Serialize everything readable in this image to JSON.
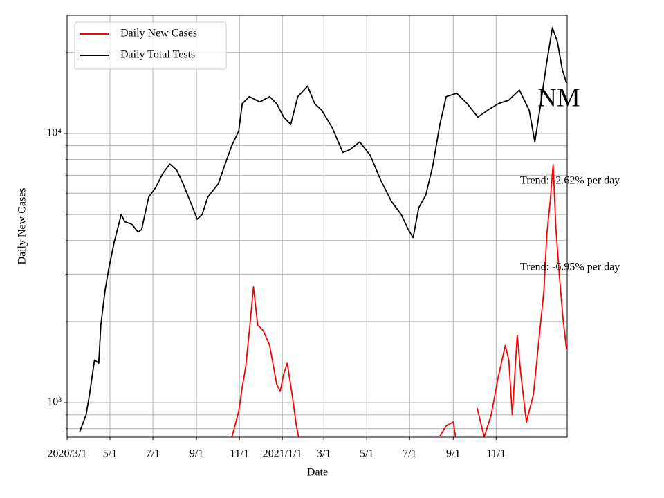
{
  "chart_data": {
    "type": "line",
    "title": "NM",
    "xlabel": "Date",
    "ylabel": "Daily New Cases",
    "log_y": true,
    "grid": true,
    "legend": "upper left",
    "annotations": [
      "Trend: -2.62% per day",
      "Trend: -6.95% per day"
    ],
    "xlim": [
      "2020-03-01",
      "2022-02-10"
    ],
    "xticks": [
      {
        "value": "2020-03-01",
        "label": "2020/3/1"
      },
      {
        "value": "2020-05-01",
        "label": "5/1"
      },
      {
        "value": "2020-07-01",
        "label": "7/1"
      },
      {
        "value": "2020-09-01",
        "label": "9/1"
      },
      {
        "value": "2020-11-01",
        "label": "11/1"
      },
      {
        "value": "2021-01-01",
        "label": "2021/1/1"
      },
      {
        "value": "2021-03-01",
        "label": "3/1"
      },
      {
        "value": "2021-05-01",
        "label": "5/1"
      },
      {
        "value": "2021-07-01",
        "label": "7/1"
      },
      {
        "value": "2021-09-01",
        "label": "9/1"
      },
      {
        "value": "2021-11-01",
        "label": "11/1"
      }
    ],
    "ylim": [
      744,
      27500
    ],
    "yticks": [
      {
        "value": 1000,
        "label": "10³"
      },
      {
        "value": 10000,
        "label": "10⁴"
      }
    ],
    "yminorticks": [
      800,
      900,
      2000,
      3000,
      4000,
      5000,
      6000,
      7000,
      8000,
      9000,
      20000
    ],
    "series": [
      {
        "name": "Daily New Cases",
        "color": "#ff0000",
        "x": [
          "2020-10-21",
          "2020-10-27",
          "2020-10-31",
          "2020-11-05",
          "2020-11-10",
          "2020-11-15",
          "2020-11-21",
          "2020-11-27",
          "2020-12-05",
          "2020-12-14",
          "2020-12-24",
          "2020-12-29",
          "2021-01-03",
          "2021-01-08",
          "2021-01-15",
          "2021-01-21",
          "2021-01-26",
          "2021-05-01",
          "2021-08-13",
          "2021-08-22",
          "2021-09-01",
          "2021-09-06",
          "2021-09-20",
          "2021-10-05",
          "2021-10-15",
          "2021-10-25",
          "2021-11-04",
          "2021-11-14",
          "2021-11-19",
          "2021-11-24",
          "2021-12-01",
          "2021-12-06",
          "2021-12-14",
          "2021-12-24",
          "2022-01-01",
          "2022-01-08",
          "2022-01-12",
          "2022-01-17",
          "2022-01-21",
          "2022-01-25",
          "2022-01-30",
          "2022-02-04",
          "2022-02-09"
        ],
        "values": [
          740,
          847,
          926,
          1140,
          1360,
          1830,
          2690,
          1940,
          1850,
          1630,
          1170,
          1100,
          1280,
          1400,
          1070,
          820,
          710,
          null,
          750,
          820,
          847,
          700,
          null,
          955,
          745,
          900,
          1245,
          1630,
          1440,
          900,
          1780,
          1280,
          847,
          1070,
          1730,
          2620,
          4190,
          5640,
          7660,
          4440,
          2940,
          2060,
          1580
        ]
      },
      {
        "name": "Daily Total Tests",
        "color": "#000000",
        "x": [
          "2020-03-19",
          "2020-03-28",
          "2020-04-02",
          "2020-04-09",
          "2020-04-15",
          "2020-04-18",
          "2020-04-24",
          "2020-04-29",
          "2020-05-07",
          "2020-05-17",
          "2020-05-22",
          "2020-06-01",
          "2020-06-10",
          "2020-06-15",
          "2020-06-25",
          "2020-07-05",
          "2020-07-15",
          "2020-07-25",
          "2020-08-04",
          "2020-08-13",
          "2020-08-23",
          "2020-09-02",
          "2020-09-09",
          "2020-09-17",
          "2020-10-02",
          "2020-10-11",
          "2020-10-21",
          "2020-10-31",
          "2020-11-05",
          "2020-11-15",
          "2020-11-30",
          "2020-12-14",
          "2020-12-24",
          "2021-01-03",
          "2021-01-13",
          "2021-01-23",
          "2021-02-06",
          "2021-02-16",
          "2021-02-26",
          "2021-03-13",
          "2021-03-28",
          "2021-04-07",
          "2021-04-21",
          "2021-05-06",
          "2021-05-21",
          "2021-06-05",
          "2021-06-19",
          "2021-06-29",
          "2021-07-06",
          "2021-07-14",
          "2021-07-24",
          "2021-08-03",
          "2021-08-13",
          "2021-08-22",
          "2021-09-06",
          "2021-09-21",
          "2021-10-06",
          "2021-10-20",
          "2021-11-04",
          "2021-11-19",
          "2021-12-04",
          "2021-12-18",
          "2021-12-26",
          "2022-01-02",
          "2022-01-12",
          "2022-01-20",
          "2022-01-27",
          "2022-02-03",
          "2022-02-09"
        ],
        "values": [
          780,
          900,
          1075,
          1440,
          1400,
          1940,
          2610,
          3120,
          3950,
          5000,
          4700,
          4600,
          4300,
          4400,
          5800,
          6300,
          7100,
          7700,
          7300,
          6500,
          5600,
          4800,
          5000,
          5800,
          6500,
          7600,
          9000,
          10200,
          12900,
          13700,
          13100,
          13700,
          12900,
          11500,
          10800,
          13700,
          15000,
          12900,
          12200,
          10500,
          8500,
          8700,
          9300,
          8300,
          6700,
          5600,
          5000,
          4400,
          4100,
          5300,
          5900,
          7600,
          10800,
          13700,
          14100,
          12900,
          11500,
          12200,
          12900,
          13300,
          14500,
          12200,
          9300,
          12200,
          18400,
          24700,
          22000,
          17300,
          15400
        ]
      }
    ]
  }
}
